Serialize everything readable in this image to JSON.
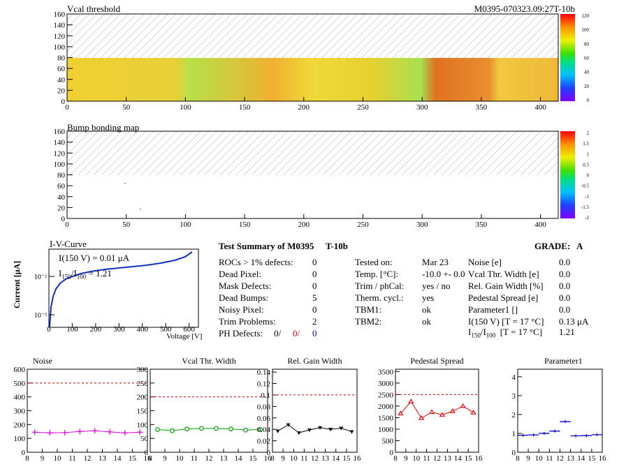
{
  "maps": {
    "vcal": {
      "title": "Vcal threshold",
      "module_tag": "M0395-070323.09:27T-10b",
      "x_ticks": [
        "0",
        "50",
        "100",
        "150",
        "200",
        "250",
        "300",
        "350",
        "400"
      ],
      "y_ticks": [
        "0",
        "20",
        "40",
        "60",
        "80",
        "100",
        "120",
        "140",
        "160"
      ],
      "palette_ticks": [
        "0",
        "20",
        "40",
        "60",
        "80",
        "100",
        "120"
      ]
    },
    "bump": {
      "title": "Bump bonding map",
      "x_ticks": [
        "0",
        "50",
        "100",
        "150",
        "200",
        "250",
        "300",
        "350",
        "400"
      ],
      "y_ticks": [
        "0",
        "20",
        "40",
        "60",
        "80",
        "100",
        "120",
        "140",
        "160"
      ],
      "palette_ticks": [
        "-2",
        "-1.5",
        "-1",
        "-0.5",
        "0",
        "0.5",
        "1",
        "1.5",
        "2"
      ]
    }
  },
  "iv": {
    "title": "I-V-Curve",
    "ylabel": "Current [μA]",
    "xlabel": "Voltage [V]",
    "annot1": "I(150 V) = 0.01 μA",
    "annot2_main": "I",
    "annot2_sub1": "150",
    "annot2_mid": "/I",
    "annot2_sub2": "100",
    "annot2_val": "= 1.21",
    "x_ticks": [
      "0",
      "100",
      "200",
      "300",
      "400",
      "500",
      "600"
    ],
    "y_ticks": [
      "10⁻³",
      "10⁻²"
    ]
  },
  "summary": {
    "title": "Test Summary of M0395",
    "tag": "T-10b",
    "grade_label": "GRADE:",
    "grade": "A",
    "left": [
      {
        "label": "ROCs > 1% defects:",
        "value": "0"
      },
      {
        "label": "Dead Pixel:",
        "value": "0"
      },
      {
        "label": "Mask Defects:",
        "value": "0"
      },
      {
        "label": "Dead Bumps:",
        "value": "5"
      },
      {
        "label": "Noisy Pixel:",
        "value": "0"
      },
      {
        "label": "Trim Problems:",
        "value": "2"
      }
    ],
    "ph_label": "PH Defects:",
    "ph_values": [
      "0/",
      "0/",
      "0"
    ],
    "ph_colors": [
      "#000000",
      "#e00000",
      "#0000cc"
    ],
    "middle": [
      {
        "label": "Tested on:",
        "value": "Mar 23"
      },
      {
        "label": "Temp. [°C]:",
        "value": "-10.0 +- 0.0"
      },
      {
        "label": "Trim / phCal:",
        "value": "yes / no"
      },
      {
        "label": "Therm. cycl.:",
        "value": "yes"
      },
      {
        "label": "TBM1:",
        "value": "ok"
      },
      {
        "label": "TBM2:",
        "value": "ok"
      }
    ],
    "right": [
      {
        "label": "Noise [e]",
        "value": "0.0"
      },
      {
        "label": "Vcal Thr. Width [e]",
        "value": "0.0"
      },
      {
        "label": "Rel. Gain Width [%]",
        "value": "0.0"
      },
      {
        "label": "Pedestal Spread [e]",
        "value": "0.0"
      },
      {
        "label": "Parameter1 []",
        "value": "0.0"
      },
      {
        "label": "I(150 V) [T = 17 °C]",
        "value": "0.13 μA"
      }
    ],
    "ratio_label": {
      "i": "I",
      "s1": "150",
      "m": "/I",
      "s2": "100",
      "t": "[T = 17 °C]"
    },
    "ratio_value": "1.21"
  },
  "chart_data": [
    {
      "type": "line",
      "title": "Noise",
      "x": [
        8.5,
        9.5,
        10.5,
        11.5,
        12.5,
        13.5,
        14.5,
        15.5
      ],
      "values": [
        145,
        140,
        142,
        150,
        155,
        147,
        140,
        145
      ],
      "x_ticks": [
        "8",
        "9",
        "10",
        "11",
        "12",
        "13",
        "14",
        "15",
        "16"
      ],
      "y_ticks": [
        "0",
        "100",
        "200",
        "300",
        "400",
        "500",
        "600"
      ],
      "ylim": [
        0,
        600
      ],
      "xlim": [
        8,
        16
      ],
      "threshold": 500,
      "color": "#d400d4",
      "marker": "cross"
    },
    {
      "type": "line",
      "title": "Vcal Thr. Width",
      "x": [
        8.5,
        9.5,
        10.5,
        11.5,
        12.5,
        13.5,
        14.5,
        15.5
      ],
      "values": [
        82,
        78,
        84,
        86,
        86,
        84,
        80,
        82
      ],
      "x_ticks": [
        "8",
        "9",
        "10",
        "11",
        "12",
        "13",
        "14",
        "15",
        "16"
      ],
      "y_ticks": [
        "0",
        "50",
        "100",
        "150",
        "200",
        "250",
        "300"
      ],
      "ylim": [
        0,
        300
      ],
      "xlim": [
        8,
        16
      ],
      "threshold": 200,
      "color": "#00a000",
      "marker": "circle"
    },
    {
      "type": "line",
      "title": "Rel. Gain Width",
      "x": [
        8.5,
        9.5,
        10.5,
        11.5,
        12.5,
        13.5,
        14.5,
        15.5
      ],
      "values": [
        0.037,
        0.048,
        0.034,
        0.039,
        0.043,
        0.04,
        0.042,
        0.036
      ],
      "x_ticks": [
        "8",
        "9",
        "10",
        "11",
        "12",
        "13",
        "14",
        "15",
        "16"
      ],
      "y_ticks": [
        "0",
        "0.02",
        "0.04",
        "0.06",
        "0.08",
        "0.1",
        "0.12",
        "0.14"
      ],
      "ylim": [
        0,
        0.145
      ],
      "xlim": [
        8,
        16
      ],
      "threshold": 0.1,
      "color": "#000000",
      "marker": "triangle-down"
    },
    {
      "type": "line",
      "title": "Pedestal Spread",
      "x": [
        8.5,
        9.5,
        10.5,
        11.5,
        12.5,
        13.5,
        14.5,
        15.5
      ],
      "values": [
        1680,
        2200,
        1480,
        1740,
        1620,
        1780,
        2000,
        1720
      ],
      "x_ticks": [
        "8",
        "9",
        "10",
        "11",
        "12",
        "13",
        "14",
        "15",
        "16"
      ],
      "y_ticks": [
        "0",
        "500",
        "1000",
        "1500",
        "2000",
        "2500",
        "3000",
        "3500"
      ],
      "ylim": [
        0,
        3600
      ],
      "xlim": [
        8,
        16
      ],
      "threshold": 2500,
      "color": "#e00000",
      "marker": "triangle-up"
    },
    {
      "type": "line",
      "title": "Parameter1",
      "x": [
        8.5,
        9.5,
        10.5,
        11.5,
        12.5,
        13.5,
        14.5,
        15.5
      ],
      "values": [
        0.9,
        0.92,
        1.0,
        1.12,
        1.62,
        0.87,
        0.88,
        0.93
      ],
      "x_ticks": [
        "8",
        "9",
        "10",
        "11",
        "12",
        "13",
        "14",
        "15",
        "16"
      ],
      "y_ticks": [
        "0",
        "1",
        "2",
        "3",
        "4"
      ],
      "ylim": [
        0,
        4.4
      ],
      "xlim": [
        8,
        16
      ],
      "threshold": null,
      "color": "#0000cc",
      "marker": "hbar"
    }
  ]
}
